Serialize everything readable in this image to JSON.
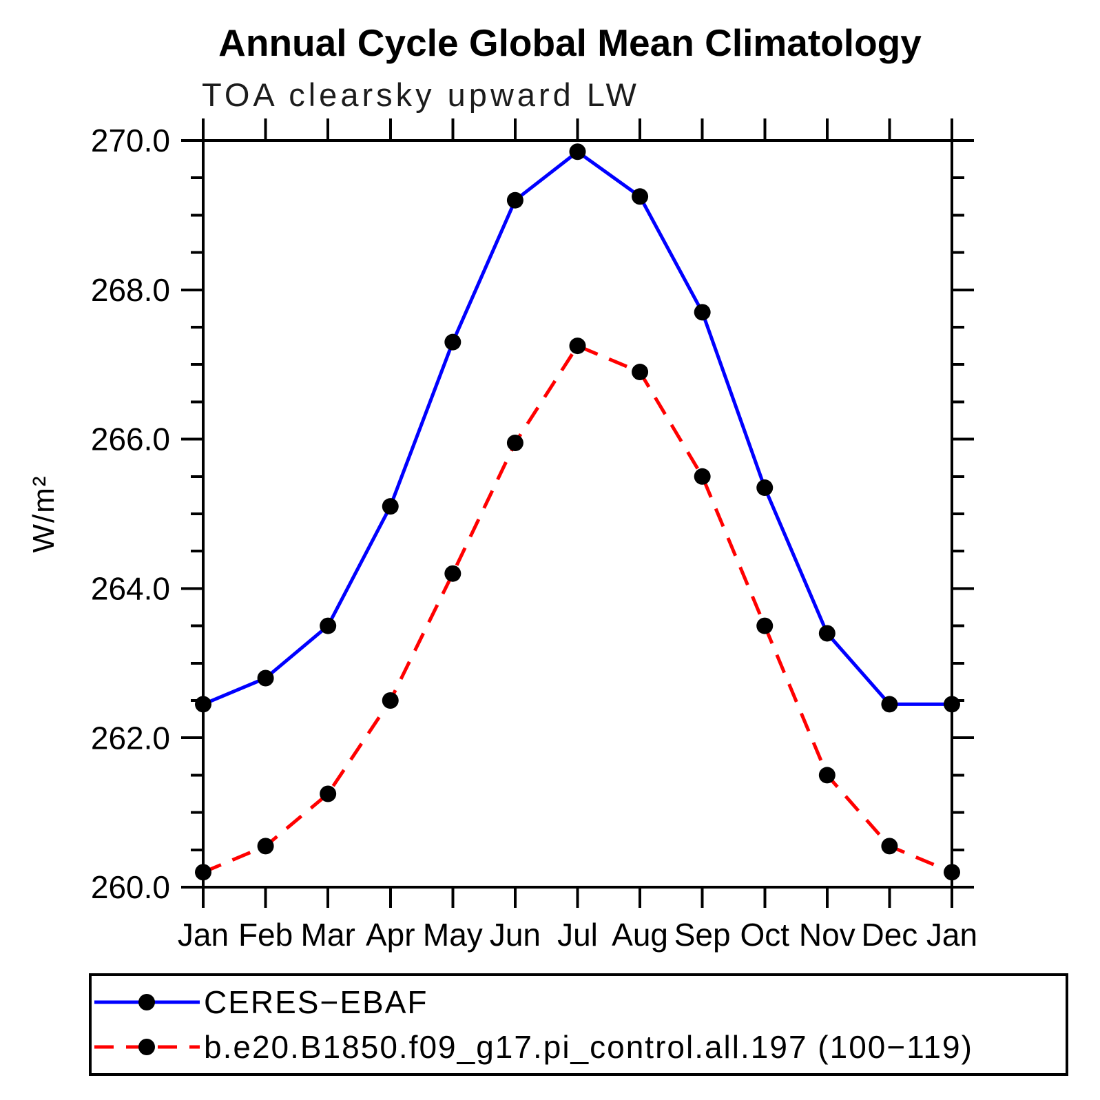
{
  "page": {
    "background": "#ffffff"
  },
  "chart_data": {
    "type": "line",
    "title": "Annual Cycle Global Mean Climatology",
    "subtitle": "TOA clearsky upward LW",
    "ylabel": "W/m²",
    "xlabel": "",
    "x_categories": [
      "Jan",
      "Feb",
      "Mar",
      "Apr",
      "May",
      "Jun",
      "Jul",
      "Aug",
      "Sep",
      "Oct",
      "Nov",
      "Dec",
      "Jan"
    ],
    "ylim": [
      260.0,
      270.0
    ],
    "ytick_major_step": 2.0,
    "ytick_minor_step": 0.5,
    "ytick_labels": [
      "260.0",
      "262.0",
      "264.0",
      "266.0",
      "268.0",
      "270.0"
    ],
    "grid": false,
    "legend_position": "bottom-left-box",
    "series": [
      {
        "name": "CERES−EBAF",
        "color": "#0000ff",
        "line_style": "solid",
        "marker": "circle",
        "marker_color": "#000000",
        "values": [
          262.45,
          262.8,
          263.5,
          265.1,
          267.3,
          269.2,
          269.85,
          269.25,
          267.7,
          265.35,
          263.4,
          262.45,
          262.45
        ]
      },
      {
        "name": "b.e20.B1850.f09_g17.pi_control.all.197 (100−119)",
        "color": "#ff0000",
        "line_style": "dashed",
        "marker": "circle",
        "marker_color": "#000000",
        "values": [
          260.2,
          260.55,
          261.25,
          262.5,
          264.2,
          265.95,
          267.25,
          266.9,
          265.5,
          263.5,
          261.5,
          260.55,
          260.2
        ]
      }
    ],
    "axis_color": "#000000"
  }
}
